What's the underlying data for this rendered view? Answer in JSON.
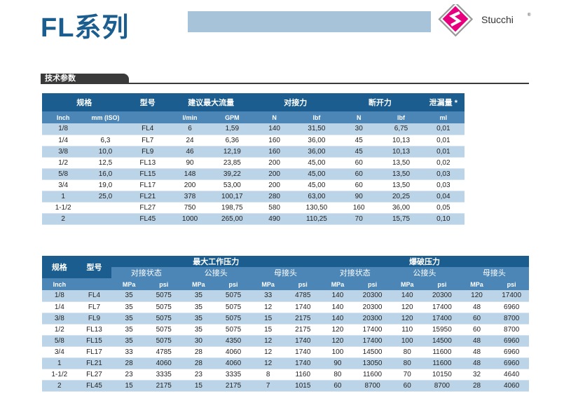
{
  "header": {
    "title": "FL系列",
    "logo_text": "Stucchi",
    "logo_mark": "®"
  },
  "section": {
    "title": "技术参数"
  },
  "table1": {
    "group_headers": [
      "规格",
      "型号",
      "建议最大流量",
      "对接力",
      "断开力",
      "泄漏量 *"
    ],
    "unit_headers": [
      "Inch",
      "mm (ISO)",
      null,
      "l/min",
      "GPM",
      "N",
      "lbf",
      "N",
      "lbf",
      "ml"
    ],
    "rows": [
      [
        "1/8",
        null,
        "FL4",
        "6",
        "1,59",
        "140",
        "31,50",
        "30",
        "6,75",
        "0,01"
      ],
      [
        "1/4",
        "6,3",
        "FL7",
        "24",
        "6,36",
        "160",
        "36,00",
        "45",
        "10,13",
        "0,01"
      ],
      [
        "3/8",
        "10,0",
        "FL9",
        "46",
        "12,19",
        "160",
        "36,00",
        "45",
        "10,13",
        "0,01"
      ],
      [
        "1/2",
        "12,5",
        "FL13",
        "90",
        "23,85",
        "200",
        "45,00",
        "60",
        "13,50",
        "0,02"
      ],
      [
        "5/8",
        "16,0",
        "FL15",
        "148",
        "39,22",
        "200",
        "45,00",
        "60",
        "13,50",
        "0,03"
      ],
      [
        "3/4",
        "19,0",
        "FL17",
        "200",
        "53,00",
        "200",
        "45,00",
        "60",
        "13,50",
        "0,03"
      ],
      [
        "1",
        "25,0",
        "FL21",
        "378",
        "100,17",
        "280",
        "63,00",
        "90",
        "20,25",
        "0,04"
      ],
      [
        "1-1/2",
        null,
        "FL27",
        "750",
        "198,75",
        "580",
        "130,50",
        "160",
        "36,00",
        "0,05"
      ],
      [
        "2",
        null,
        "FL45",
        "1000",
        "265,00",
        "490",
        "110,25",
        "70",
        "15,75",
        "0,10"
      ]
    ]
  },
  "table2": {
    "group_headers": [
      "规格",
      "型号",
      "最大工作压力",
      "爆破压力"
    ],
    "sub_headers": [
      "对接状态",
      "公接头",
      "母接头",
      "对接状态",
      "公接头",
      "母接头"
    ],
    "unit_headers": [
      "Inch",
      null,
      "MPa",
      "psi",
      "MPa",
      "psi",
      "MPa",
      "psi",
      "MPa",
      "psi",
      "MPa",
      "psi",
      "MPa",
      "psi"
    ],
    "rows": [
      [
        "1/8",
        "FL4",
        "35",
        "5075",
        "35",
        "5075",
        "33",
        "4785",
        "140",
        "20300",
        "140",
        "20300",
        "120",
        "17400"
      ],
      [
        "1/4",
        "FL7",
        "35",
        "5075",
        "35",
        "5075",
        "12",
        "1740",
        "140",
        "20300",
        "120",
        "17400",
        "48",
        "6960"
      ],
      [
        "3/8",
        "FL9",
        "35",
        "5075",
        "35",
        "5075",
        "15",
        "2175",
        "140",
        "20300",
        "120",
        "17400",
        "60",
        "8700"
      ],
      [
        "1/2",
        "FL13",
        "35",
        "5075",
        "35",
        "5075",
        "15",
        "2175",
        "120",
        "17400",
        "110",
        "15950",
        "60",
        "8700"
      ],
      [
        "5/8",
        "FL15",
        "35",
        "5075",
        "30",
        "4350",
        "12",
        "1740",
        "120",
        "17400",
        "100",
        "14500",
        "48",
        "6960"
      ],
      [
        "3/4",
        "FL17",
        "33",
        "4785",
        "28",
        "4060",
        "12",
        "1740",
        "100",
        "14500",
        "80",
        "11600",
        "48",
        "6960"
      ],
      [
        "1",
        "FL21",
        "28",
        "4060",
        "28",
        "4060",
        "12",
        "1740",
        "90",
        "13050",
        "80",
        "11600",
        "48",
        "6960"
      ],
      [
        "1-1/2",
        "FL27",
        "23",
        "3335",
        "23",
        "3335",
        "8",
        "1160",
        "80",
        "11600",
        "70",
        "10150",
        "32",
        "4640"
      ],
      [
        "2",
        "FL45",
        "15",
        "2175",
        "15",
        "2175",
        "7",
        "1015",
        "60",
        "8700",
        "60",
        "8700",
        "28",
        "4060"
      ]
    ]
  }
}
